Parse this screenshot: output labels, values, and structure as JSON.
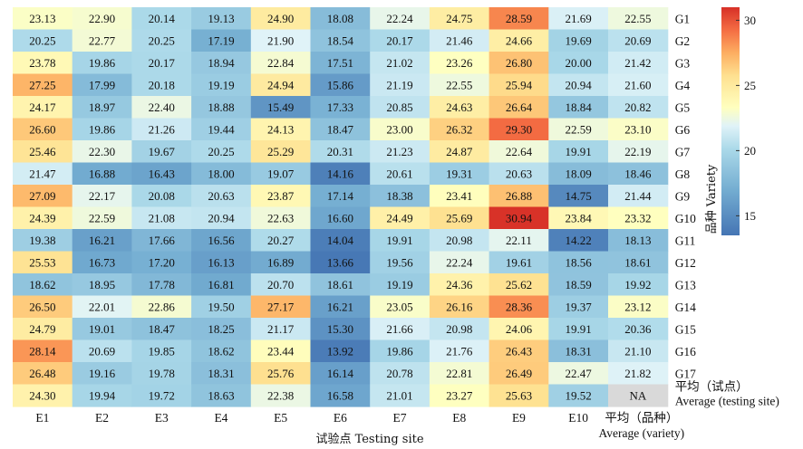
{
  "chart_data": {
    "type": "heatmap",
    "x_categories": [
      "E1",
      "E2",
      "E3",
      "E4",
      "E5",
      "E6",
      "E7",
      "E8",
      "E9",
      "E10"
    ],
    "avg_column_label_cn": "平均（品种）",
    "avg_column_label_en": "Average (variety)",
    "y_categories": [
      "G1",
      "G2",
      "G3",
      "G4",
      "G5",
      "G6",
      "G7",
      "G8",
      "G9",
      "G10",
      "G11",
      "G12",
      "G13",
      "G14",
      "G15",
      "G16",
      "G17"
    ],
    "avg_row_label_cn": "平均（试点）",
    "avg_row_label_en": "Average (testing site)",
    "xlabel": "试验点 Testing site",
    "colorbar_label": "品种 Variety",
    "colorbar_ticks": [
      15,
      20,
      25,
      30
    ],
    "colorbar_range": [
      13.5,
      31
    ],
    "colors": {
      "low": "#4575b4",
      "mid": "#ffffbf",
      "high": "#d73027",
      "na": "#d9d9d9"
    },
    "na_label": "NA",
    "values": [
      [
        23.13,
        22.9,
        20.14,
        19.13,
        24.9,
        18.08,
        22.24,
        24.75,
        28.59,
        21.69,
        22.55
      ],
      [
        20.25,
        22.77,
        20.25,
        17.19,
        21.9,
        18.54,
        20.17,
        21.46,
        24.66,
        19.69,
        20.69
      ],
      [
        23.78,
        19.86,
        20.17,
        18.94,
        22.84,
        17.51,
        21.02,
        23.26,
        26.8,
        20.0,
        21.42
      ],
      [
        27.25,
        17.99,
        20.18,
        19.19,
        24.94,
        15.86,
        21.19,
        22.55,
        25.94,
        20.94,
        21.6
      ],
      [
        24.17,
        18.97,
        22.4,
        18.88,
        15.49,
        17.33,
        20.85,
        24.63,
        26.64,
        18.84,
        20.82
      ],
      [
        26.6,
        19.86,
        21.26,
        19.44,
        24.13,
        18.47,
        23.0,
        26.32,
        29.3,
        22.59,
        23.1
      ],
      [
        25.46,
        22.3,
        19.67,
        20.25,
        25.29,
        20.31,
        21.23,
        24.87,
        22.64,
        19.91,
        22.19
      ],
      [
        21.47,
        16.88,
        16.43,
        18.0,
        19.07,
        14.16,
        20.61,
        19.31,
        20.63,
        18.09,
        18.46
      ],
      [
        27.09,
        22.17,
        20.08,
        20.63,
        23.87,
        17.14,
        18.38,
        23.41,
        26.88,
        14.75,
        21.44
      ],
      [
        24.39,
        22.59,
        21.08,
        20.94,
        22.63,
        16.6,
        24.49,
        25.69,
        30.94,
        23.84,
        23.32
      ],
      [
        19.38,
        16.21,
        17.66,
        16.56,
        20.27,
        14.04,
        19.91,
        20.98,
        22.11,
        14.22,
        18.13
      ],
      [
        25.53,
        16.73,
        17.2,
        16.13,
        16.89,
        13.66,
        19.56,
        22.24,
        19.61,
        18.56,
        18.61
      ],
      [
        18.62,
        18.95,
        17.78,
        16.81,
        20.7,
        18.61,
        19.19,
        24.36,
        25.62,
        18.59,
        19.92
      ],
      [
        26.5,
        22.01,
        22.86,
        19.5,
        27.17,
        16.21,
        23.05,
        26.16,
        28.36,
        19.37,
        23.12
      ],
      [
        24.79,
        19.01,
        18.47,
        18.25,
        21.17,
        15.3,
        21.66,
        20.98,
        24.06,
        19.91,
        20.36
      ],
      [
        28.14,
        20.69,
        19.85,
        18.62,
        23.44,
        13.92,
        19.86,
        21.76,
        26.43,
        18.31,
        21.1
      ],
      [
        26.48,
        19.16,
        19.78,
        18.31,
        25.76,
        16.14,
        20.78,
        22.81,
        26.49,
        22.47,
        21.82
      ],
      [
        24.3,
        19.94,
        19.72,
        18.63,
        22.38,
        16.58,
        21.01,
        23.27,
        25.63,
        19.52,
        null
      ]
    ]
  }
}
